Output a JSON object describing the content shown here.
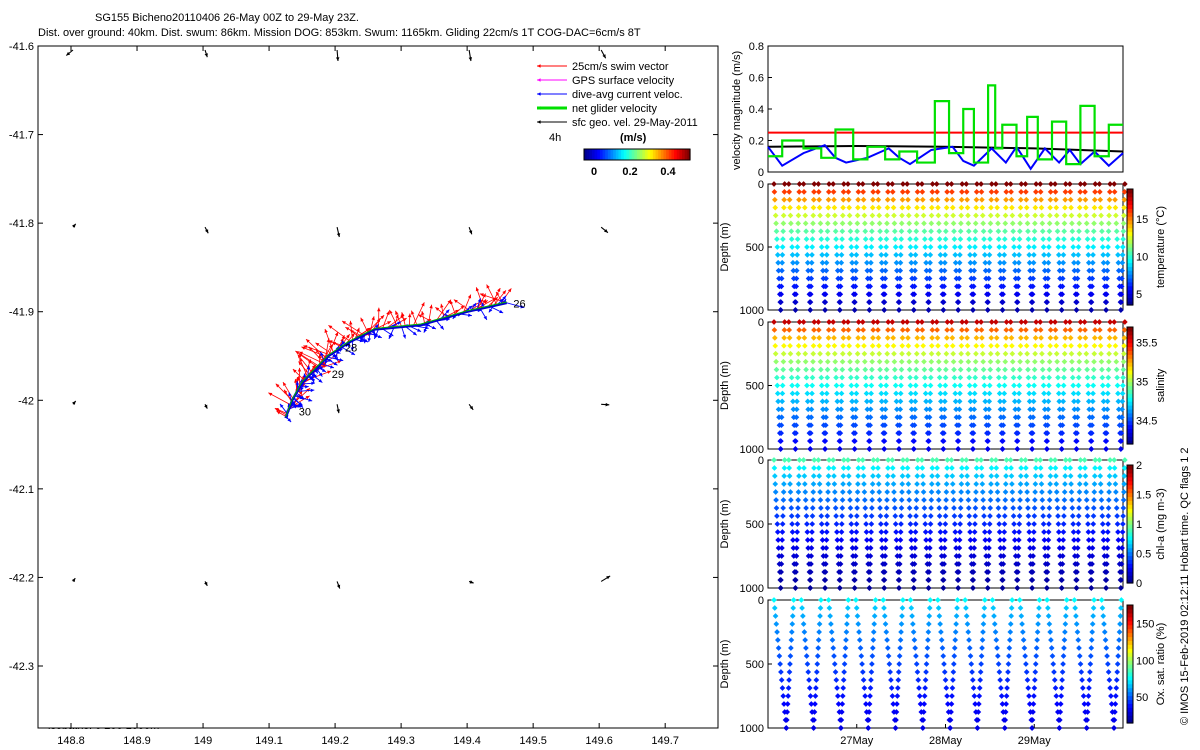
{
  "figure": {
    "title_line1": "SG155 Bicheno20110406 26-May 00Z to 29-May 23Z.",
    "title_line2": "Dist. over ground: 40km. Dist. swum: 86km. Mission DOG: 853km. Swum: 1165km. Gliding 22cm/s 1T COG-DAC=6cm/s 8T",
    "side_note": "© IMOS 15-Feb-2019 02:12:11 Hobart time. QC flags 1  2",
    "isobaths_text": "isobaths: 0   200  1000m",
    "time_scale_label": "4h"
  },
  "legend": {
    "items": [
      {
        "label": "25cm/s swim vector",
        "color": "#ff0000"
      },
      {
        "label": "GPS surface velocity",
        "color": "#ff00ff"
      },
      {
        "label": "dive-avg current veloc.",
        "color": "#0000ff"
      },
      {
        "label": "net glider velocity",
        "color": "#00e000"
      },
      {
        "label": "sfc geo. vel. 29-May-2011",
        "color": "#000000"
      }
    ],
    "colorbar_title": "(m/s)",
    "colorbar_ticks": [
      "0",
      "0.2",
      "0.4"
    ]
  },
  "colors": {
    "jet": [
      "#00008f",
      "#0000ff",
      "#007fff",
      "#00ffff",
      "#7fff7f",
      "#ffff00",
      "#ff7f00",
      "#ff0000",
      "#7f0000"
    ]
  },
  "chart_data": [
    {
      "type": "map",
      "x_ticks": [
        "148.8",
        "148.9",
        "149",
        "149.1",
        "149.2",
        "149.3",
        "149.4",
        "149.5",
        "149.6",
        "149.7"
      ],
      "y_ticks": [
        "-41.6",
        "-41.7",
        "-41.8",
        "-41.9",
        "-42",
        "-42.1",
        "-42.2",
        "-42.3"
      ],
      "xlim": [
        148.75,
        149.78
      ],
      "ylim": [
        -42.37,
        -41.6
      ],
      "track": [
        [
          149.46,
          -41.89
        ],
        [
          149.4,
          -41.9
        ],
        [
          149.33,
          -41.915
        ],
        [
          149.26,
          -41.92
        ],
        [
          149.22,
          -41.935
        ],
        [
          149.19,
          -41.95
        ],
        [
          149.17,
          -41.965
        ],
        [
          149.15,
          -41.98
        ],
        [
          149.135,
          -42.0
        ],
        [
          149.125,
          -42.02
        ]
      ],
      "track_labels": [
        {
          "text": "26",
          "lon": 149.47,
          "lat": -41.895
        },
        {
          "text": "28",
          "lon": 149.215,
          "lat": -41.945
        },
        {
          "text": "29",
          "lon": 149.195,
          "lat": -41.975
        },
        {
          "text": "30",
          "lon": 149.145,
          "lat": -42.017
        }
      ],
      "geo_vectors": [
        [
          148.8,
          -41.6,
          -15,
          10
        ],
        [
          149.0,
          -41.6,
          5,
          13
        ],
        [
          149.2,
          -41.6,
          2,
          20
        ],
        [
          149.4,
          -41.6,
          4,
          20
        ],
        [
          149.6,
          -41.6,
          10,
          15
        ],
        [
          148.8,
          -41.8,
          6,
          -6
        ],
        [
          149.0,
          -41.8,
          7,
          11
        ],
        [
          149.2,
          -41.8,
          5,
          18
        ],
        [
          149.4,
          -41.8,
          6,
          13
        ],
        [
          149.6,
          -41.8,
          15,
          10
        ],
        [
          148.8,
          -42.0,
          6,
          -6
        ],
        [
          149.0,
          -42.0,
          5,
          8
        ],
        [
          149.2,
          -42.0,
          4,
          16
        ],
        [
          149.4,
          -42.0,
          9,
          10
        ],
        [
          149.6,
          -42.0,
          18,
          1
        ],
        [
          148.8,
          -42.2,
          5,
          -6
        ],
        [
          149.0,
          -42.2,
          5,
          8
        ],
        [
          149.2,
          -42.2,
          6,
          13
        ],
        [
          149.4,
          -42.2,
          10,
          3
        ],
        [
          149.6,
          -42.2,
          20,
          -10
        ]
      ]
    },
    {
      "type": "line",
      "ylabel": "velocity magnitude (m/s)",
      "ylim": [
        0,
        0.8
      ],
      "y_ticks": [
        "0",
        "0.2",
        "0.4",
        "0.6",
        "0.8"
      ],
      "xlim": [
        0,
        100
      ],
      "series": [
        {
          "color": "#ff0000",
          "x": [
            0,
            100
          ],
          "values": [
            0.25,
            0.25
          ]
        },
        {
          "color": "#000000",
          "x": [
            0,
            25,
            50,
            75,
            100
          ],
          "values": [
            0.16,
            0.165,
            0.16,
            0.15,
            0.13
          ]
        },
        {
          "color": "#0000ff",
          "x": [
            0,
            4,
            10,
            16,
            19,
            22,
            28,
            34,
            37,
            40,
            46,
            52,
            55,
            58,
            63,
            67,
            70,
            74,
            78,
            82,
            85,
            88,
            92,
            96,
            100
          ],
          "values": [
            0.16,
            0.04,
            0.12,
            0.17,
            0.09,
            0.06,
            0.09,
            0.15,
            0.09,
            0.05,
            0.14,
            0.16,
            0.07,
            0.04,
            0.15,
            0.06,
            0.16,
            0.02,
            0.15,
            0.06,
            0.14,
            0.05,
            0.13,
            0.04,
            0.12
          ]
        },
        {
          "color": "#00e000",
          "x": [
            0,
            4,
            4,
            10,
            10,
            15,
            15,
            19,
            19,
            24,
            24,
            28,
            28,
            33,
            33,
            37,
            37,
            42,
            42,
            47,
            47,
            51,
            51,
            55,
            55,
            58,
            58,
            62,
            62,
            64,
            64,
            66,
            66,
            70,
            70,
            73,
            73,
            76,
            76,
            80,
            80,
            84,
            84,
            88,
            88,
            92,
            92,
            96,
            96,
            100
          ],
          "values": [
            0.1,
            0.1,
            0.2,
            0.2,
            0.15,
            0.15,
            0.09,
            0.09,
            0.27,
            0.27,
            0.08,
            0.08,
            0.16,
            0.16,
            0.08,
            0.08,
            0.13,
            0.13,
            0.06,
            0.06,
            0.45,
            0.45,
            0.12,
            0.12,
            0.4,
            0.4,
            0.06,
            0.06,
            0.55,
            0.55,
            0.15,
            0.15,
            0.3,
            0.3,
            0.1,
            0.1,
            0.35,
            0.35,
            0.08,
            0.08,
            0.32,
            0.32,
            0.05,
            0.05,
            0.42,
            0.42,
            0.1,
            0.1,
            0.3,
            0.3
          ]
        }
      ]
    },
    {
      "type": "scatter",
      "ylabel": "Depth (m)",
      "colorbar_label": "temperature (°C)",
      "y_ticks": [
        "0",
        "500",
        "1000"
      ],
      "ylim": [
        1000,
        0
      ],
      "cbar_ticks": [
        "5",
        "10",
        "15"
      ],
      "cbar_range": [
        3.5,
        19
      ],
      "profile": {
        "cycles": 24,
        "surface": 19,
        "deep": 4,
        "max_depth": 1000
      }
    },
    {
      "type": "scatter",
      "ylabel": "Depth (m)",
      "colorbar_label": "salinity",
      "y_ticks": [
        "0",
        "500",
        "1000"
      ],
      "ylim": [
        1000,
        0
      ],
      "cbar_ticks": [
        "34.5",
        "35",
        "35.5"
      ],
      "cbar_range": [
        34.2,
        35.7
      ],
      "profile": {
        "cycles": 24,
        "surface": 35.6,
        "deep": 34.35,
        "max_depth": 1000
      }
    },
    {
      "type": "scatter",
      "ylabel": "Depth (m)",
      "colorbar_label": "chl-a (mg m-3)",
      "y_ticks": [
        "0",
        "500",
        "1000"
      ],
      "ylim": [
        1000,
        0
      ],
      "cbar_ticks": [
        "0",
        "0.5",
        "1",
        "1.5",
        "2"
      ],
      "cbar_range": [
        0,
        2
      ],
      "profile": {
        "cycles": 24,
        "surface": 0.9,
        "deep": 0.02,
        "max_depth": 1000
      }
    },
    {
      "type": "scatter",
      "ylabel": "Depth (m)",
      "colorbar_label": "Ox. sat. ratio (%)",
      "y_ticks": [
        "0",
        "500",
        "1000"
      ],
      "ylim": [
        1000,
        0
      ],
      "cbar_ticks": [
        "50",
        "100",
        "150"
      ],
      "cbar_range": [
        15,
        175
      ],
      "x_ticks": [
        "27May",
        "28May",
        "29May"
      ],
      "profile": {
        "cycles": 13,
        "surface": 75,
        "deep": 30,
        "max_depth": 1000
      }
    }
  ]
}
